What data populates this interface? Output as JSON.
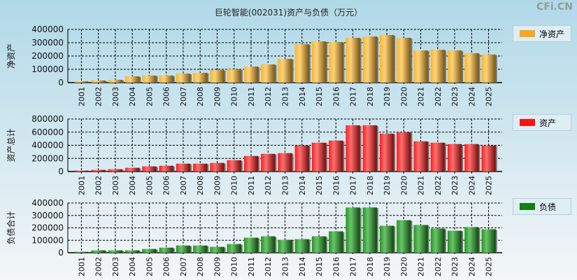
{
  "title": "巨轮智能(002031)资产与负债（万元）",
  "watermark": "CFi.CN",
  "chart_data": [
    {
      "type": "bar",
      "ylabel": "净资产",
      "legend": "净资产",
      "color": "#f5a623",
      "ylim": [
        0,
        400000
      ],
      "yticks": [
        "0",
        "100000",
        "200000",
        "300000",
        "400000"
      ],
      "categories": [
        "2001",
        "2002",
        "2003",
        "2004",
        "2005",
        "2006",
        "2007",
        "2008",
        "2009",
        "2010",
        "2011",
        "2012",
        "2013",
        "2014",
        "2015",
        "2016",
        "2017",
        "2018",
        "2019",
        "2020",
        "2021",
        "2022",
        "2023",
        "2024",
        "2025"
      ],
      "values": [
        10500,
        16000,
        21000,
        47000,
        53000,
        53000,
        68000,
        74000,
        95000,
        100000,
        121000,
        137000,
        179000,
        289000,
        310000,
        305000,
        337000,
        347000,
        358000,
        337000,
        242000,
        247000,
        242000,
        221000,
        211000
      ]
    },
    {
      "type": "bar",
      "ylabel": "资产总计",
      "legend": "资产",
      "color": "#ff2020",
      "ylim": [
        0,
        800000
      ],
      "yticks": [
        "0",
        "200000",
        "400000",
        "600000",
        "800000"
      ],
      "categories": [
        "2001",
        "2002",
        "2003",
        "2004",
        "2005",
        "2006",
        "2007",
        "2008",
        "2009",
        "2010",
        "2011",
        "2012",
        "2013",
        "2014",
        "2015",
        "2016",
        "2017",
        "2018",
        "2019",
        "2020",
        "2021",
        "2022",
        "2023",
        "2024",
        "2025"
      ],
      "values": [
        14000,
        25000,
        35000,
        57000,
        78000,
        88000,
        120000,
        120000,
        131000,
        173000,
        237000,
        269000,
        280000,
        396000,
        439000,
        471000,
        704000,
        704000,
        577000,
        598000,
        460000,
        439000,
        418000,
        418000,
        396000
      ]
    },
    {
      "type": "bar",
      "ylabel": "负债合计",
      "legend": "负债",
      "color": "#1a8a1a",
      "ylim": [
        0,
        400000
      ],
      "yticks": [
        "0",
        "100000",
        "200000",
        "300000",
        "400000"
      ],
      "categories": [
        "2001",
        "2002",
        "2003",
        "2004",
        "2005",
        "2006",
        "2007",
        "2008",
        "2009",
        "2010",
        "2011",
        "2012",
        "2013",
        "2014",
        "2015",
        "2016",
        "2017",
        "2018",
        "2019",
        "2020",
        "2021",
        "2022",
        "2023",
        "2024",
        "2025"
      ],
      "values": [
        7500,
        19000,
        19000,
        19000,
        30000,
        41000,
        58000,
        58000,
        47000,
        70000,
        121000,
        132000,
        104000,
        109000,
        132000,
        172000,
        364000,
        364000,
        217000,
        262000,
        223000,
        194000,
        177000,
        206000,
        189000
      ]
    }
  ]
}
